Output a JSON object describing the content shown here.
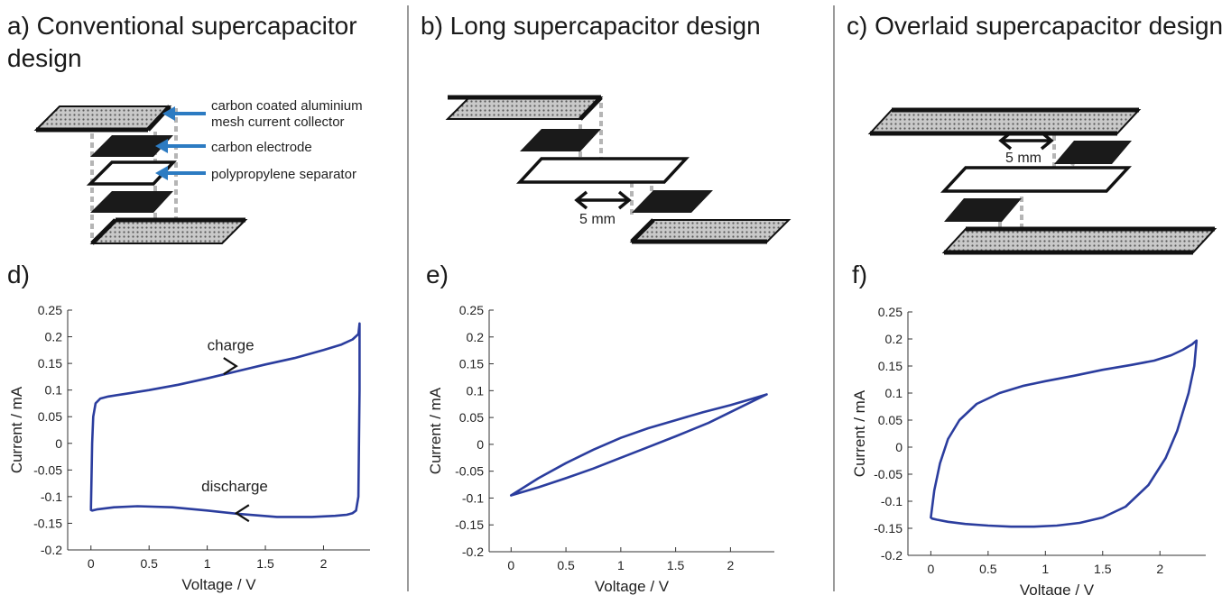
{
  "colors": {
    "curve": "#2b3d9e",
    "arrow": "#2c7bc2",
    "divider": "#9a9a9a",
    "connector": "#b0b0b0",
    "mesh_fill": "#a8a8a8",
    "electrode": "#1a1a1a"
  },
  "diagrams": [
    {
      "title_lines": [
        "a) Conventional supercapacitor",
        "design"
      ],
      "callouts": [
        "carbon coated aluminium",
        "mesh current collector",
        "carbon electrode",
        "polypropylene separator"
      ]
    },
    {
      "title_lines": [
        "b) Long supercapacitor design"
      ],
      "dimension": "5 mm"
    },
    {
      "title_lines": [
        "c) Overlaid supercapacitor design"
      ],
      "dimension": "5 mm"
    }
  ],
  "chart_data": [
    {
      "panel_label": "d)",
      "type": "line",
      "xlabel": "Voltage / V",
      "ylabel": "Current / mA",
      "xlim": [
        -0.2,
        2.4
      ],
      "ylim": [
        -0.2,
        0.25
      ],
      "xticks": [
        0,
        0.5,
        1,
        1.5,
        2
      ],
      "xtick_labels": [
        "0",
        "0.5",
        "1",
        "1.5",
        "2"
      ],
      "yticks": [
        -0.2,
        -0.15,
        -0.1,
        -0.05,
        0,
        0.05,
        0.1,
        0.15,
        0.2,
        0.25
      ],
      "ytick_labels": [
        "-0.2",
        "-0.15",
        "-0.1",
        "-0.05",
        "0",
        "0.05",
        "0.1",
        "0.15",
        "0.2",
        "0.25"
      ],
      "annotations": [
        {
          "text": "charge",
          "x": 1.0,
          "y": 0.175
        },
        {
          "text": "discharge",
          "x": 0.95,
          "y": -0.09
        }
      ],
      "arrows": [
        {
          "x": 1.25,
          "y": 0.145,
          "dir": "right"
        },
        {
          "x": 1.25,
          "y": -0.131,
          "dir": "left"
        }
      ],
      "series": [
        {
          "x": [
            0,
            0.01,
            0.02,
            0.04,
            0.08,
            0.15,
            0.3,
            0.5,
            0.75,
            1.0,
            1.25,
            1.5,
            1.75,
            2.0,
            2.15,
            2.25,
            2.3,
            2.31,
            2.31,
            2.3,
            2.28,
            2.25,
            2.2,
            2.1,
            1.9,
            1.6,
            1.25,
            1.0,
            0.7,
            0.4,
            0.2,
            0.05,
            0.01,
            0,
            0
          ],
          "y": [
            -0.12,
            0.0,
            0.05,
            0.075,
            0.084,
            0.088,
            0.093,
            0.1,
            0.11,
            0.122,
            0.135,
            0.148,
            0.16,
            0.175,
            0.185,
            0.195,
            0.205,
            0.225,
            0.1,
            -0.1,
            -0.126,
            -0.131,
            -0.134,
            -0.136,
            -0.138,
            -0.138,
            -0.132,
            -0.126,
            -0.12,
            -0.118,
            -0.12,
            -0.124,
            -0.126,
            -0.125,
            -0.12
          ]
        }
      ]
    },
    {
      "panel_label": "e)",
      "type": "line",
      "xlabel": "Voltage / V",
      "ylabel": "Current / mA",
      "xlim": [
        -0.2,
        2.4
      ],
      "ylim": [
        -0.2,
        0.25
      ],
      "xticks": [
        0,
        0.5,
        1,
        1.5,
        2
      ],
      "xtick_labels": [
        "0",
        "0.5",
        "1",
        "1.5",
        "2"
      ],
      "yticks": [
        -0.2,
        -0.15,
        -0.1,
        -0.05,
        0,
        0.05,
        0.1,
        0.15,
        0.2,
        0.25
      ],
      "ytick_labels": [
        "-0.2",
        "-0.15",
        "-0.1",
        "-0.05",
        "0",
        "0.05",
        "0.1",
        "0.15",
        "0.2",
        "0.25"
      ],
      "series": [
        {
          "x": [
            0,
            0.25,
            0.5,
            0.75,
            1.0,
            1.25,
            1.5,
            1.75,
            2.0,
            2.2,
            2.33,
            2.1,
            1.8,
            1.5,
            1.25,
            1.0,
            0.75,
            0.5,
            0.25,
            0
          ],
          "y": [
            -0.095,
            -0.063,
            -0.035,
            -0.01,
            0.012,
            0.03,
            0.045,
            0.06,
            0.073,
            0.085,
            0.093,
            0.07,
            0.04,
            0.015,
            -0.005,
            -0.025,
            -0.045,
            -0.063,
            -0.08,
            -0.095
          ]
        }
      ]
    },
    {
      "panel_label": "f)",
      "type": "line",
      "xlabel": "Voltage / V",
      "ylabel": "Current / mA",
      "xlim": [
        -0.2,
        2.4
      ],
      "ylim": [
        -0.2,
        0.25
      ],
      "xticks": [
        0,
        0.5,
        1,
        1.5,
        2
      ],
      "xtick_labels": [
        "0",
        "0.5",
        "1",
        "1.5",
        "2"
      ],
      "yticks": [
        -0.2,
        -0.15,
        -0.1,
        -0.05,
        0,
        0.05,
        0.1,
        0.15,
        0.2,
        0.25
      ],
      "ytick_labels": [
        "-0.2",
        "-0.15",
        "-0.1",
        "-0.05",
        "0",
        "0.05",
        "0.1",
        "0.15",
        "0.2",
        "0.25"
      ],
      "series": [
        {
          "x": [
            0,
            0.03,
            0.08,
            0.15,
            0.25,
            0.4,
            0.6,
            0.8,
            1.0,
            1.25,
            1.5,
            1.75,
            1.95,
            2.1,
            2.2,
            2.28,
            2.32,
            2.3,
            2.25,
            2.15,
            2.05,
            1.9,
            1.7,
            1.5,
            1.3,
            1.1,
            0.9,
            0.7,
            0.5,
            0.3,
            0.15,
            0.05,
            0.01,
            0
          ],
          "y": [
            -0.13,
            -0.08,
            -0.03,
            0.015,
            0.05,
            0.08,
            0.1,
            0.113,
            0.122,
            0.132,
            0.143,
            0.152,
            0.16,
            0.17,
            0.18,
            0.19,
            0.197,
            0.15,
            0.1,
            0.03,
            -0.02,
            -0.07,
            -0.11,
            -0.13,
            -0.14,
            -0.145,
            -0.147,
            -0.147,
            -0.145,
            -0.142,
            -0.138,
            -0.134,
            -0.132,
            -0.13
          ]
        }
      ]
    }
  ]
}
